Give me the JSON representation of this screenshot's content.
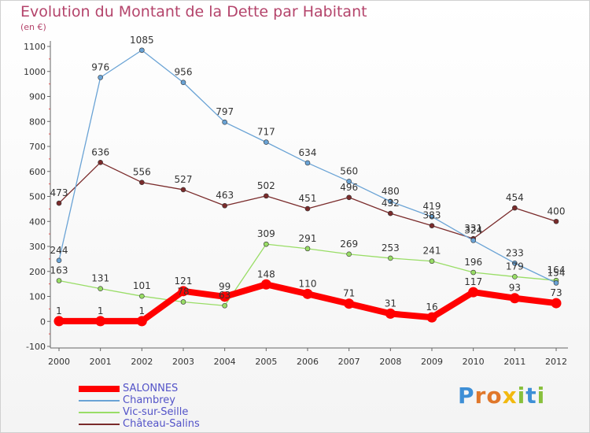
{
  "chart_data": {
    "type": "line",
    "title": "Evolution du Montant de la Dette par Habitant",
    "subtitle": "(en €)",
    "x": [
      "2000",
      "2001",
      "2002",
      "2003",
      "2004",
      "2005",
      "2006",
      "2007",
      "2008",
      "2009",
      "2010",
      "2011",
      "2012"
    ],
    "ylim": [
      -100,
      1100
    ],
    "yticks": [
      -100,
      0,
      100,
      200,
      300,
      400,
      500,
      600,
      700,
      800,
      900,
      1000,
      1100
    ],
    "grid": false,
    "legend_position": "bottom-left",
    "series": [
      {
        "name": "SALONNES",
        "color": "#ff0000",
        "values": [
          1,
          1,
          1,
          121,
          99,
          148,
          110,
          71,
          31,
          16,
          117,
          93,
          73
        ]
      },
      {
        "name": "Chambrey",
        "color": "#6aa3d5",
        "values": [
          244,
          976,
          1085,
          956,
          797,
          717,
          634,
          560,
          480,
          419,
          324,
          233,
          154
        ]
      },
      {
        "name": "Vic-sur-Seille",
        "color": "#99dd66",
        "values": [
          163,
          131,
          101,
          78,
          63,
          309,
          291,
          269,
          253,
          241,
          196,
          179,
          164
        ]
      },
      {
        "name": "Château-Salins",
        "color": "#7a2b2b",
        "values": [
          473,
          636,
          556,
          527,
          463,
          502,
          451,
          496,
          432,
          383,
          331,
          454,
          400
        ]
      }
    ]
  },
  "logo": {
    "letters": [
      "P",
      "r",
      "o",
      "x",
      "i",
      "t",
      "i"
    ],
    "colors": [
      "#3e8fd6",
      "#e0772b",
      "#e0772b",
      "#f2b90f",
      "#88c03c",
      "#3e8fd6",
      "#88c03c"
    ]
  }
}
